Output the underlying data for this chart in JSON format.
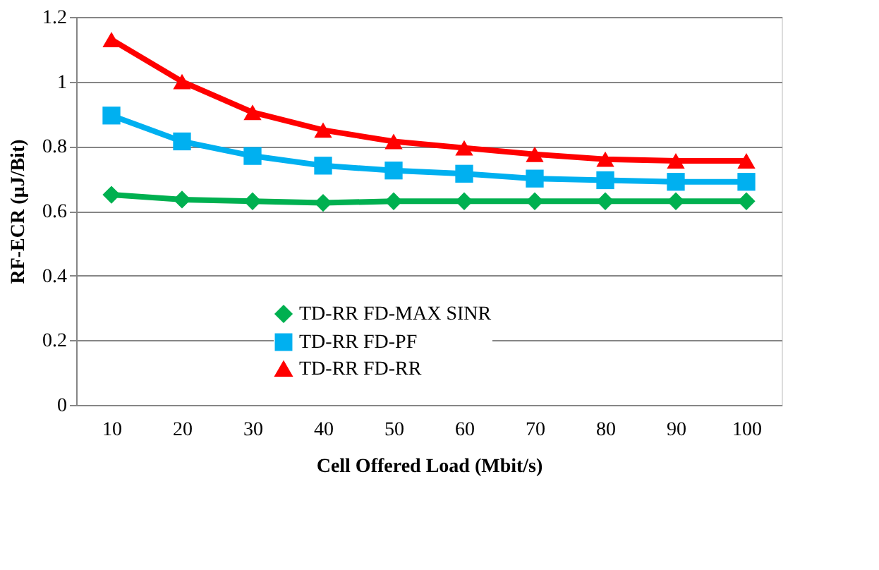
{
  "chart_data": {
    "type": "line",
    "xlabel": "Cell Offered Load (Mbit/s)",
    "ylabel": "RF-ECR (µJ/Bit)",
    "categories": [
      "10",
      "20",
      "30",
      "40",
      "50",
      "60",
      "70",
      "80",
      "90",
      "100"
    ],
    "series": [
      {
        "name": "TD-RR FD-MAX SINR",
        "color": "#00b050",
        "marker": "diamond",
        "values": [
          0.65,
          0.635,
          0.63,
          0.625,
          0.63,
          0.63,
          0.63,
          0.63,
          0.63,
          0.63
        ]
      },
      {
        "name": "TD-RR FD-PF",
        "color": "#00b0f0",
        "marker": "square",
        "values": [
          0.895,
          0.815,
          0.77,
          0.74,
          0.725,
          0.715,
          0.7,
          0.695,
          0.69,
          0.69
        ]
      },
      {
        "name": "TD-RR FD-RR",
        "color": "#ff0000",
        "marker": "triangle",
        "values": [
          1.13,
          1.0,
          0.905,
          0.85,
          0.815,
          0.795,
          0.775,
          0.76,
          0.755,
          0.755
        ]
      }
    ],
    "ylim": [
      0,
      1.2
    ],
    "yticks": [
      0,
      0.2,
      0.4,
      0.6,
      0.8,
      1,
      1.2
    ],
    "grid": "y",
    "legend": "bottom",
    "line_style": "solid"
  }
}
